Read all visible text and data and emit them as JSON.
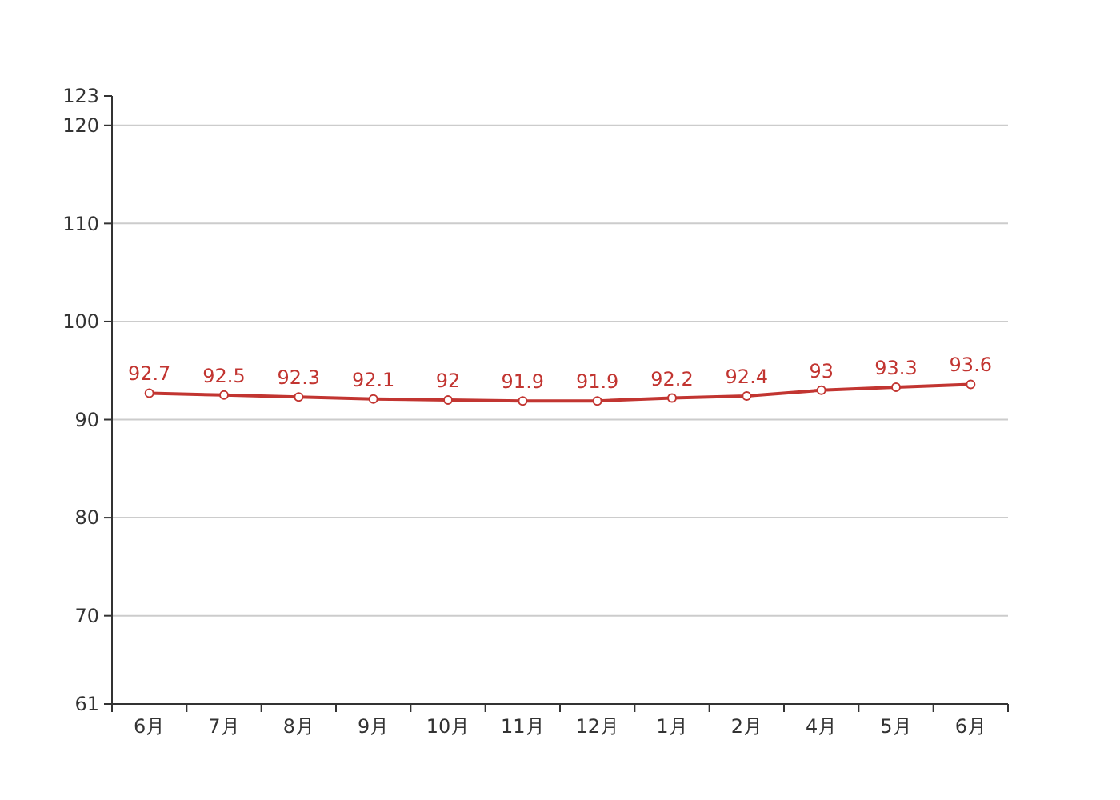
{
  "chart_data": {
    "type": "line",
    "categories": [
      "6月",
      "7月",
      "8月",
      "9月",
      "10月",
      "11月",
      "12月",
      "1月",
      "2月",
      "4月",
      "5月",
      "6月"
    ],
    "series": [
      {
        "color": "#c23531",
        "values": [
          92.7,
          92.5,
          92.3,
          92.1,
          92,
          91.9,
          91.9,
          92.2,
          92.4,
          93,
          93.3,
          93.6
        ]
      }
    ],
    "ylim": [
      61,
      123
    ],
    "yticks": [
      61,
      70,
      80,
      90,
      100,
      110,
      120,
      123
    ],
    "grid": "y",
    "marker": "circle",
    "line_style": "solid",
    "data_labels": true
  }
}
